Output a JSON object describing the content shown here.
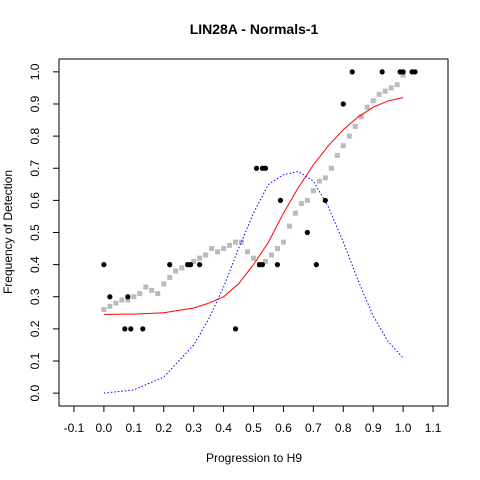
{
  "chart_data": {
    "type": "scatter",
    "title": "LIN28A - Normals-1",
    "xlabel": "Progression to H9",
    "ylabel": "Frequency of Detection",
    "xlim": [
      -0.15,
      1.15
    ],
    "ylim": [
      -0.04,
      1.04
    ],
    "x_ticks": [
      "-0.1",
      "0.0",
      "0.1",
      "0.2",
      "0.3",
      "0.4",
      "0.5",
      "0.6",
      "0.7",
      "0.8",
      "0.9",
      "1.0",
      "1.1"
    ],
    "y_ticks": [
      "0.0",
      "0.1",
      "0.2",
      "0.3",
      "0.4",
      "0.5",
      "0.6",
      "0.7",
      "0.8",
      "0.9",
      "1.0"
    ],
    "grid": false,
    "series": [
      {
        "kind": "points",
        "color": "#000000",
        "points": [
          [
            0.0,
            0.4
          ],
          [
            0.02,
            0.3
          ],
          [
            0.07,
            0.2
          ],
          [
            0.09,
            0.2
          ],
          [
            0.08,
            0.3
          ],
          [
            0.13,
            0.2
          ],
          [
            0.22,
            0.4
          ],
          [
            0.28,
            0.4
          ],
          [
            0.29,
            0.4
          ],
          [
            0.32,
            0.4
          ],
          [
            0.44,
            0.2
          ],
          [
            0.51,
            0.7
          ],
          [
            0.53,
            0.7
          ],
          [
            0.54,
            0.7
          ],
          [
            0.52,
            0.4
          ],
          [
            0.53,
            0.4
          ],
          [
            0.58,
            0.4
          ],
          [
            0.59,
            0.6
          ],
          [
            0.68,
            0.5
          ],
          [
            0.71,
            0.4
          ],
          [
            0.74,
            0.6
          ],
          [
            0.8,
            0.9
          ],
          [
            0.83,
            1.0
          ],
          [
            0.93,
            1.0
          ],
          [
            0.99,
            1.0
          ],
          [
            1.0,
            1.0
          ],
          [
            1.03,
            1.0
          ],
          [
            1.04,
            1.0
          ]
        ]
      },
      {
        "kind": "running-frequency",
        "color": "#bbbbbb",
        "points": [
          [
            0.0,
            0.26
          ],
          [
            0.02,
            0.27
          ],
          [
            0.04,
            0.28
          ],
          [
            0.06,
            0.29
          ],
          [
            0.08,
            0.29
          ],
          [
            0.1,
            0.3
          ],
          [
            0.12,
            0.31
          ],
          [
            0.14,
            0.33
          ],
          [
            0.16,
            0.32
          ],
          [
            0.18,
            0.31
          ],
          [
            0.2,
            0.34
          ],
          [
            0.22,
            0.36
          ],
          [
            0.24,
            0.38
          ],
          [
            0.26,
            0.39
          ],
          [
            0.28,
            0.4
          ],
          [
            0.3,
            0.41
          ],
          [
            0.32,
            0.42
          ],
          [
            0.34,
            0.43
          ],
          [
            0.36,
            0.45
          ],
          [
            0.38,
            0.44
          ],
          [
            0.4,
            0.45
          ],
          [
            0.42,
            0.46
          ],
          [
            0.44,
            0.47
          ],
          [
            0.46,
            0.47
          ],
          [
            0.48,
            0.44
          ],
          [
            0.5,
            0.42
          ],
          [
            0.52,
            0.4
          ],
          [
            0.54,
            0.41
          ],
          [
            0.56,
            0.43
          ],
          [
            0.58,
            0.45
          ],
          [
            0.6,
            0.47
          ],
          [
            0.62,
            0.52
          ],
          [
            0.64,
            0.56
          ],
          [
            0.66,
            0.59
          ],
          [
            0.68,
            0.6
          ],
          [
            0.7,
            0.63
          ],
          [
            0.72,
            0.66
          ],
          [
            0.74,
            0.67
          ],
          [
            0.76,
            0.7
          ],
          [
            0.78,
            0.74
          ],
          [
            0.8,
            0.77
          ],
          [
            0.82,
            0.8
          ],
          [
            0.84,
            0.83
          ],
          [
            0.86,
            0.86
          ],
          [
            0.88,
            0.89
          ],
          [
            0.9,
            0.91
          ],
          [
            0.92,
            0.93
          ],
          [
            0.94,
            0.94
          ],
          [
            0.96,
            0.95
          ],
          [
            0.98,
            0.96
          ],
          [
            1.0,
            0.99
          ]
        ]
      },
      {
        "kind": "line",
        "color": "#ff0000",
        "dash": "solid",
        "points": [
          [
            0.0,
            0.245
          ],
          [
            0.1,
            0.246
          ],
          [
            0.2,
            0.25
          ],
          [
            0.3,
            0.265
          ],
          [
            0.35,
            0.28
          ],
          [
            0.4,
            0.3
          ],
          [
            0.45,
            0.34
          ],
          [
            0.5,
            0.4
          ],
          [
            0.55,
            0.47
          ],
          [
            0.6,
            0.56
          ],
          [
            0.65,
            0.64
          ],
          [
            0.7,
            0.71
          ],
          [
            0.75,
            0.77
          ],
          [
            0.8,
            0.82
          ],
          [
            0.85,
            0.86
          ],
          [
            0.9,
            0.89
          ],
          [
            0.95,
            0.91
          ],
          [
            1.0,
            0.92
          ]
        ]
      },
      {
        "kind": "line",
        "color": "#0000ff",
        "dash": "dotted",
        "points": [
          [
            0.0,
            0.0
          ],
          [
            0.1,
            0.01
          ],
          [
            0.2,
            0.05
          ],
          [
            0.3,
            0.15
          ],
          [
            0.35,
            0.23
          ],
          [
            0.4,
            0.33
          ],
          [
            0.45,
            0.45
          ],
          [
            0.5,
            0.56
          ],
          [
            0.55,
            0.65
          ],
          [
            0.6,
            0.68
          ],
          [
            0.65,
            0.69
          ],
          [
            0.7,
            0.66
          ],
          [
            0.75,
            0.58
          ],
          [
            0.8,
            0.47
          ],
          [
            0.85,
            0.35
          ],
          [
            0.9,
            0.24
          ],
          [
            0.95,
            0.16
          ],
          [
            1.0,
            0.11
          ]
        ]
      }
    ]
  }
}
